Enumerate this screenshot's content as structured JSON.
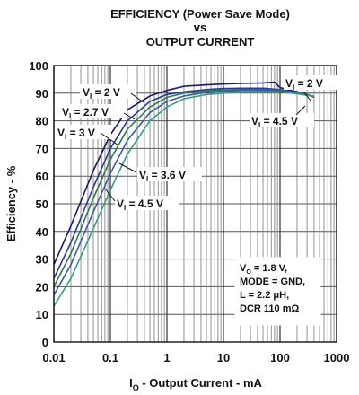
{
  "chart_data": {
    "type": "line",
    "title": [
      "EFFICIENCY (Power Save Mode)",
      "vs",
      "OUTPUT CURRENT"
    ],
    "xlabel_main": "I",
    "xlabel_sub": "O",
    "xlabel_rest": " - Output Current - mA",
    "ylabel": "Efficiency - %",
    "x_scale": "log",
    "xlim": [
      0.01,
      1000
    ],
    "ylim": [
      0,
      100
    ],
    "x_ticks": [
      0.01,
      0.1,
      1,
      10,
      100,
      1000
    ],
    "x_tick_labels": [
      "0.01",
      "0.1",
      "1",
      "10",
      "100",
      "1000"
    ],
    "y_ticks": [
      0,
      10,
      20,
      30,
      40,
      50,
      60,
      70,
      80,
      90,
      100
    ],
    "y_tick_labels": [
      "0",
      "10",
      "20",
      "30",
      "40",
      "50",
      "60",
      "70",
      "80",
      "90",
      "100"
    ],
    "grid": true,
    "series": [
      {
        "name_main": "V",
        "name_sub": "I",
        "name_val": " = 2 V",
        "color": "#1a1a6e",
        "x": [
          0.01,
          0.02,
          0.05,
          0.1,
          0.2,
          0.5,
          1,
          2,
          5,
          10,
          20,
          50,
          80,
          100,
          200,
          300,
          400
        ],
        "y": [
          28,
          42,
          62,
          75,
          84,
          89,
          91,
          92.5,
          93,
          93.3,
          93.5,
          93.7,
          94,
          92,
          90.5,
          89.5,
          88.5
        ]
      },
      {
        "name_main": "V",
        "name_sub": "I",
        "name_val": " = 2.7 V",
        "color": "#2a3d8f",
        "x": [
          0.01,
          0.02,
          0.05,
          0.1,
          0.2,
          0.5,
          1,
          2,
          5,
          10,
          20,
          50,
          100,
          200,
          300,
          400
        ],
        "y": [
          23,
          36,
          56,
          70,
          80,
          87,
          89.5,
          90.5,
          91.3,
          91.7,
          91.8,
          91.8,
          91.3,
          90.3,
          89.5,
          88.8
        ]
      },
      {
        "name_main": "V",
        "name_sub": "I",
        "name_val": " = 3 V",
        "color": "#2f7a4c",
        "x": [
          0.01,
          0.02,
          0.05,
          0.1,
          0.2,
          0.5,
          1,
          2,
          5,
          10,
          20,
          50,
          100,
          200,
          300,
          400
        ],
        "y": [
          20,
          32,
          52,
          66,
          77,
          85,
          88.5,
          90,
          90.8,
          91.2,
          91.3,
          91.3,
          91,
          90.2,
          89.5,
          88.8
        ]
      },
      {
        "name_main": "V",
        "name_sub": "I",
        "name_val": " = 3.6 V",
        "color": "#3c5aa8",
        "x": [
          0.01,
          0.02,
          0.05,
          0.1,
          0.2,
          0.5,
          1,
          2,
          5,
          10,
          20,
          50,
          100,
          200,
          300,
          400
        ],
        "y": [
          17,
          28,
          47,
          61,
          73,
          83,
          87,
          89,
          90.3,
          90.7,
          90.9,
          91,
          90.8,
          90,
          89.3,
          88.8
        ]
      },
      {
        "name_main": "V",
        "name_sub": "I",
        "name_val": " = 4.5 V",
        "color": "#3a9a82",
        "x": [
          0.01,
          0.02,
          0.05,
          0.1,
          0.2,
          0.5,
          1,
          2,
          5,
          10,
          20,
          50,
          100,
          200,
          300,
          400
        ],
        "y": [
          13,
          23,
          41,
          55,
          68,
          80,
          85,
          88,
          89.5,
          90,
          90.3,
          90.5,
          90.4,
          89.8,
          89.2,
          88.8
        ]
      }
    ],
    "right_labels": [
      {
        "main": "V",
        "sub": "I",
        "val": " = 2 V"
      },
      {
        "main": "V",
        "sub": "I",
        "val": " = 4.5 V"
      }
    ],
    "conditions": [
      "V",
      "O",
      " = 1.8 V,",
      "MODE = GND,",
      "L = 2.2 μH,",
      "DCR 110 mΩ"
    ]
  }
}
